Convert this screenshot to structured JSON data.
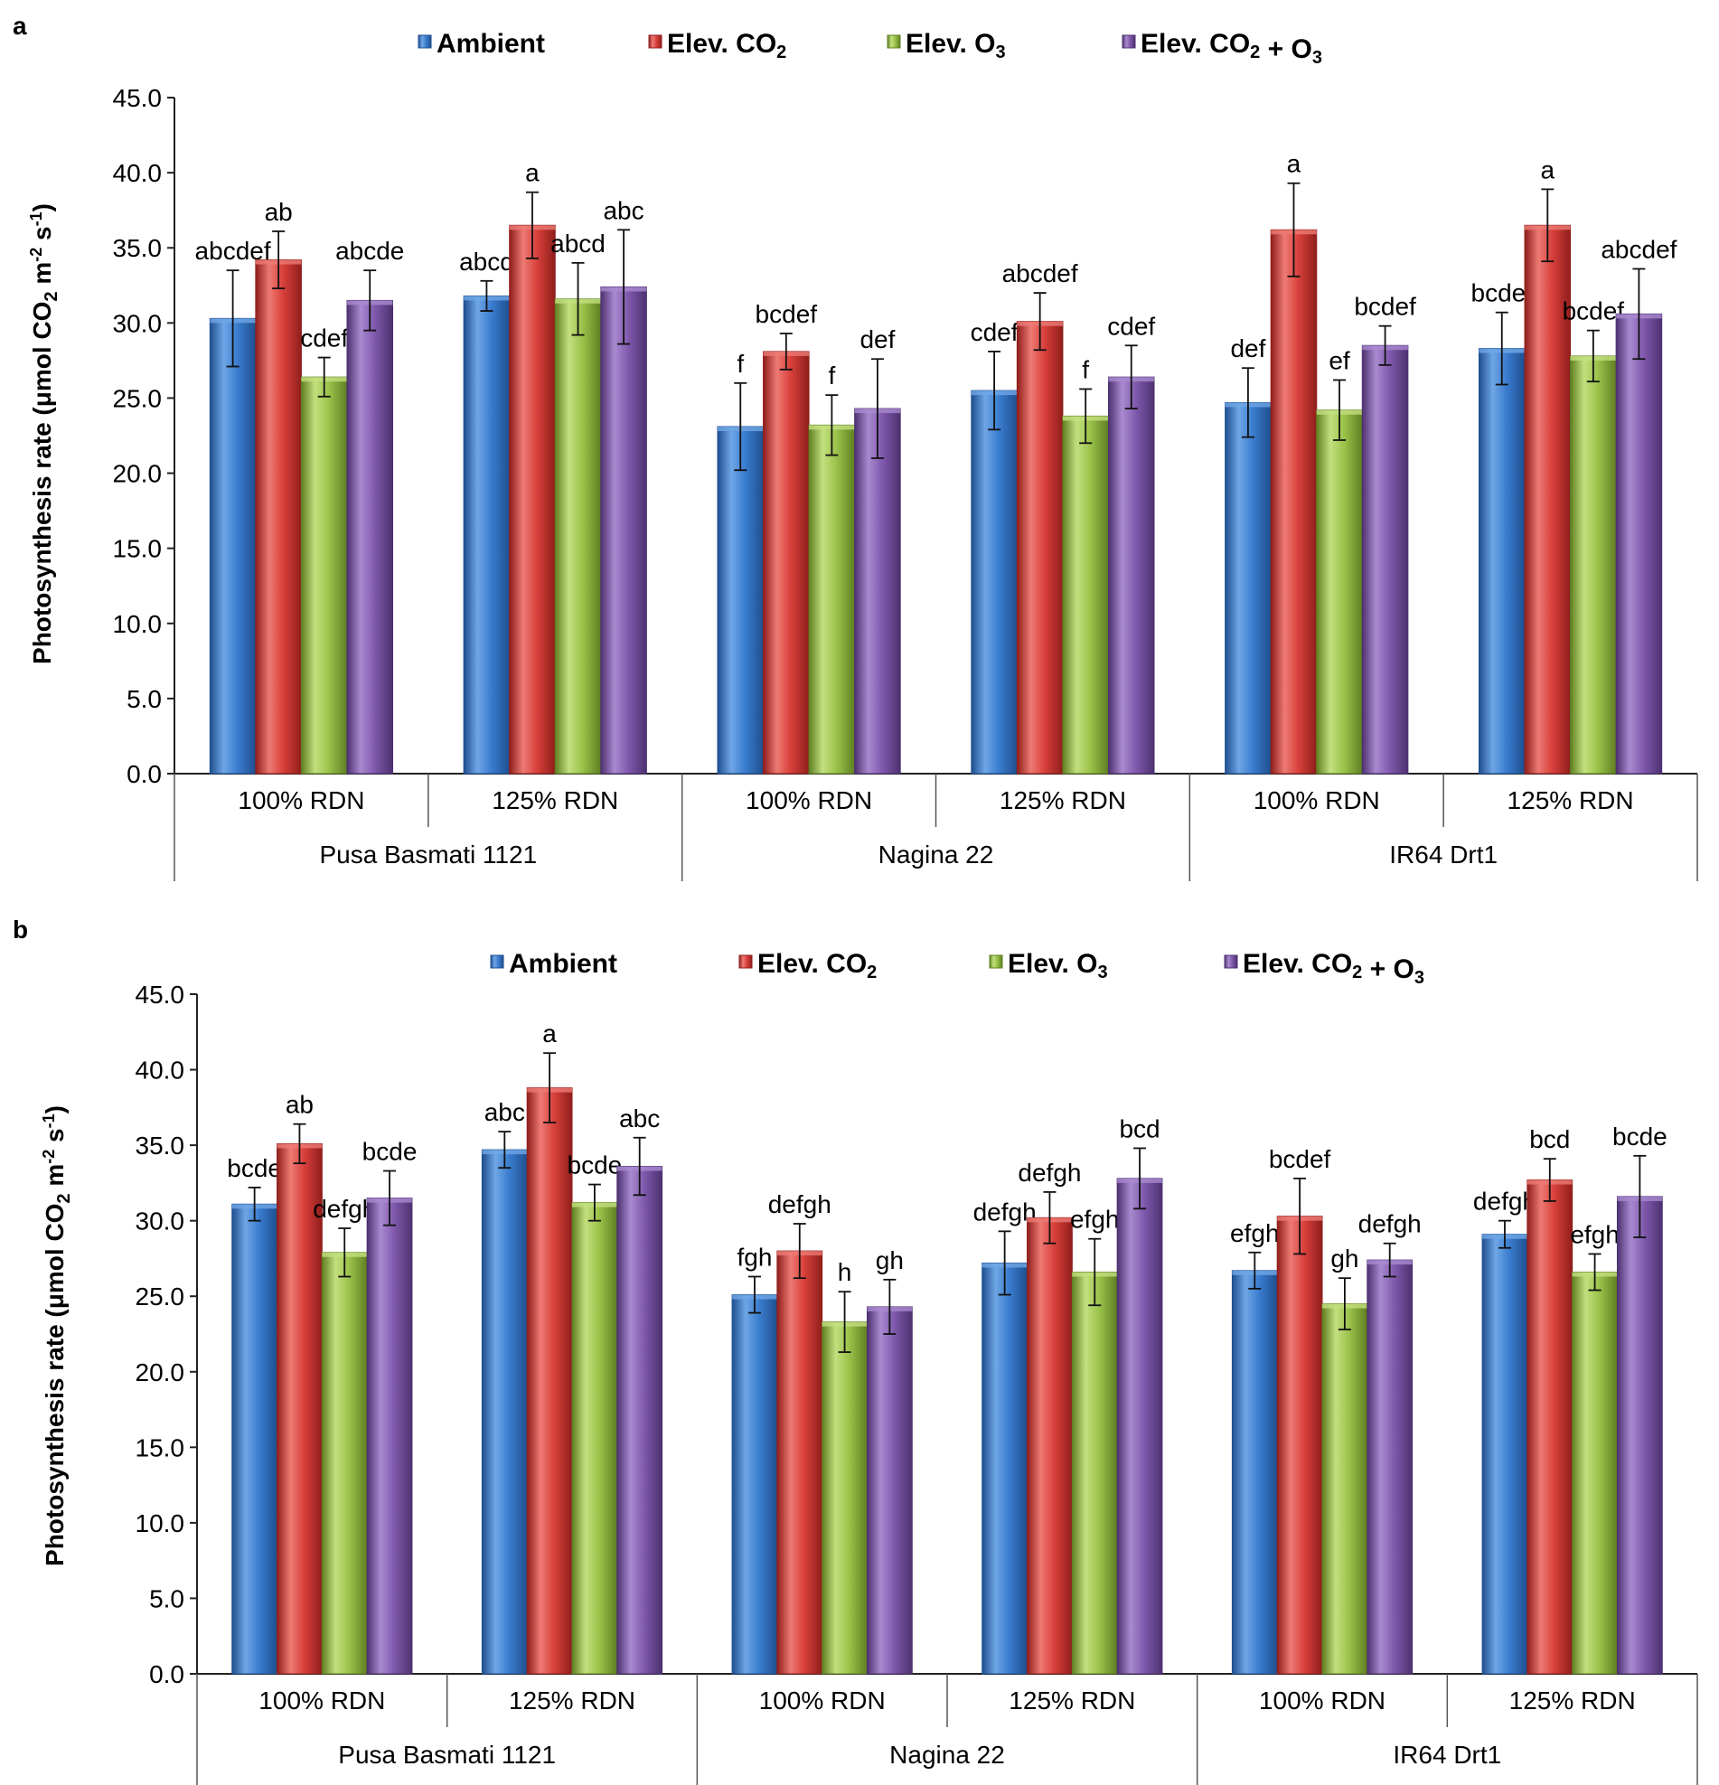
{
  "series_meta": [
    {
      "name": "Ambient",
      "color": "#3a7dcf",
      "dark": "#1f4f8f",
      "light": "#6fa6e6"
    },
    {
      "name": "Elev. CO2",
      "color": "#d9403b",
      "dark": "#8f1e1b",
      "light": "#ee7a74"
    },
    {
      "name": "Elev. O3",
      "color": "#9bc34a",
      "dark": "#5f7f22",
      "light": "#c3e07f"
    },
    {
      "name": "Elev. CO2 + O3",
      "color": "#8059ad",
      "dark": "#4d3170",
      "light": "#a98ad0"
    }
  ],
  "legend": [
    {
      "prefix": "Ambient",
      "sub1": "",
      "mid": "",
      "sub2": ""
    },
    {
      "prefix": "Elev. CO",
      "sub1": "2",
      "mid": "",
      "sub2": ""
    },
    {
      "prefix": "Elev. O",
      "sub1": "3",
      "mid": "",
      "sub2": ""
    },
    {
      "prefix": "Elev. CO",
      "sub1": "2",
      "mid": " + O",
      "sub2": "3"
    }
  ],
  "ylabel": {
    "pre": "Photosynthesis rate (μmol CO",
    "sub": "2",
    "mid": " m",
    "sup1": "-2",
    "mid2": " s",
    "sup2": "-1",
    "post": ")"
  },
  "chart_data": [
    {
      "type": "bar",
      "panel": "a",
      "ylim": [
        0,
        45
      ],
      "yticks": [
        "0.0",
        "5.0",
        "10.0",
        "15.0",
        "20.0",
        "25.0",
        "30.0",
        "35.0",
        "40.0",
        "45.0"
      ],
      "groups": [
        "Pusa Basmati 1121",
        "Nagina 22",
        "IR64 Drt1"
      ],
      "categories": [
        "100% RDN",
        "125% RDN",
        "100% RDN",
        "125% RDN",
        "100% RDN",
        "125% RDN"
      ],
      "series": [
        {
          "name": "Ambient",
          "values": [
            30.3,
            31.8,
            23.1,
            25.5,
            24.7,
            28.3
          ],
          "errors": [
            3.2,
            1.0,
            2.9,
            2.6,
            2.3,
            2.4
          ],
          "labels": [
            "abcdef",
            "abcd",
            "f",
            "cdef",
            "def",
            "bcdef"
          ]
        },
        {
          "name": "Elev. CO2",
          "values": [
            34.2,
            36.5,
            28.1,
            30.1,
            36.2,
            36.5
          ],
          "errors": [
            1.9,
            2.2,
            1.2,
            1.9,
            3.1,
            2.4
          ],
          "labels": [
            "ab",
            "a",
            "bcdef",
            "abcdef",
            "a",
            "a"
          ]
        },
        {
          "name": "Elev. O3",
          "values": [
            26.4,
            31.6,
            23.2,
            23.8,
            24.2,
            27.8
          ],
          "errors": [
            1.3,
            2.4,
            2.0,
            1.8,
            2.0,
            1.7
          ],
          "labels": [
            "cdef",
            "abcd",
            "f",
            "f",
            "ef",
            "bcdef"
          ]
        },
        {
          "name": "Elev. CO2 + O3",
          "values": [
            31.5,
            32.4,
            24.3,
            26.4,
            28.5,
            30.6
          ],
          "errors": [
            2.0,
            3.8,
            3.3,
            2.1,
            1.3,
            3.0
          ],
          "labels": [
            "abcde",
            "abc",
            "def",
            "cdef",
            "bcdef",
            "abcdef"
          ]
        }
      ]
    },
    {
      "type": "bar",
      "panel": "b",
      "ylim": [
        0,
        45
      ],
      "yticks": [
        "0.0",
        "5.0",
        "10.0",
        "15.0",
        "20.0",
        "25.0",
        "30.0",
        "35.0",
        "40.0",
        "45.0"
      ],
      "groups": [
        "Pusa Basmati 1121",
        "Nagina 22",
        "IR64 Drt1"
      ],
      "categories": [
        "100% RDN",
        "125% RDN",
        "100% RDN",
        "125% RDN",
        "100% RDN",
        "125% RDN"
      ],
      "series": [
        {
          "name": "Ambient",
          "values": [
            31.1,
            34.7,
            25.1,
            27.2,
            26.7,
            29.1
          ],
          "errors": [
            1.1,
            1.2,
            1.2,
            2.1,
            1.2,
            0.9
          ],
          "labels": [
            "bcde",
            "abc",
            "fgh",
            "defgh",
            "efgh",
            "defgh"
          ]
        },
        {
          "name": "Elev. CO2",
          "values": [
            35.1,
            38.8,
            28.0,
            30.2,
            30.3,
            32.7
          ],
          "errors": [
            1.3,
            2.3,
            1.8,
            1.7,
            2.5,
            1.4
          ],
          "labels": [
            "ab",
            "a",
            "defgh",
            "defgh",
            "bcdef",
            "bcd"
          ]
        },
        {
          "name": "Elev. O3",
          "values": [
            27.9,
            31.2,
            23.3,
            26.6,
            24.5,
            26.6
          ],
          "errors": [
            1.6,
            1.2,
            2.0,
            2.2,
            1.7,
            1.2
          ],
          "labels": [
            "defgh",
            "bcde",
            "h",
            "efgh",
            "gh",
            "efgh"
          ]
        },
        {
          "name": "Elev. CO2 + O3",
          "values": [
            31.5,
            33.6,
            24.3,
            32.8,
            27.4,
            31.6
          ],
          "errors": [
            1.8,
            1.9,
            1.8,
            2.0,
            1.1,
            2.7
          ],
          "labels": [
            "bcde",
            "abc",
            "gh",
            "bcd",
            "defgh",
            "bcde"
          ]
        }
      ]
    }
  ]
}
